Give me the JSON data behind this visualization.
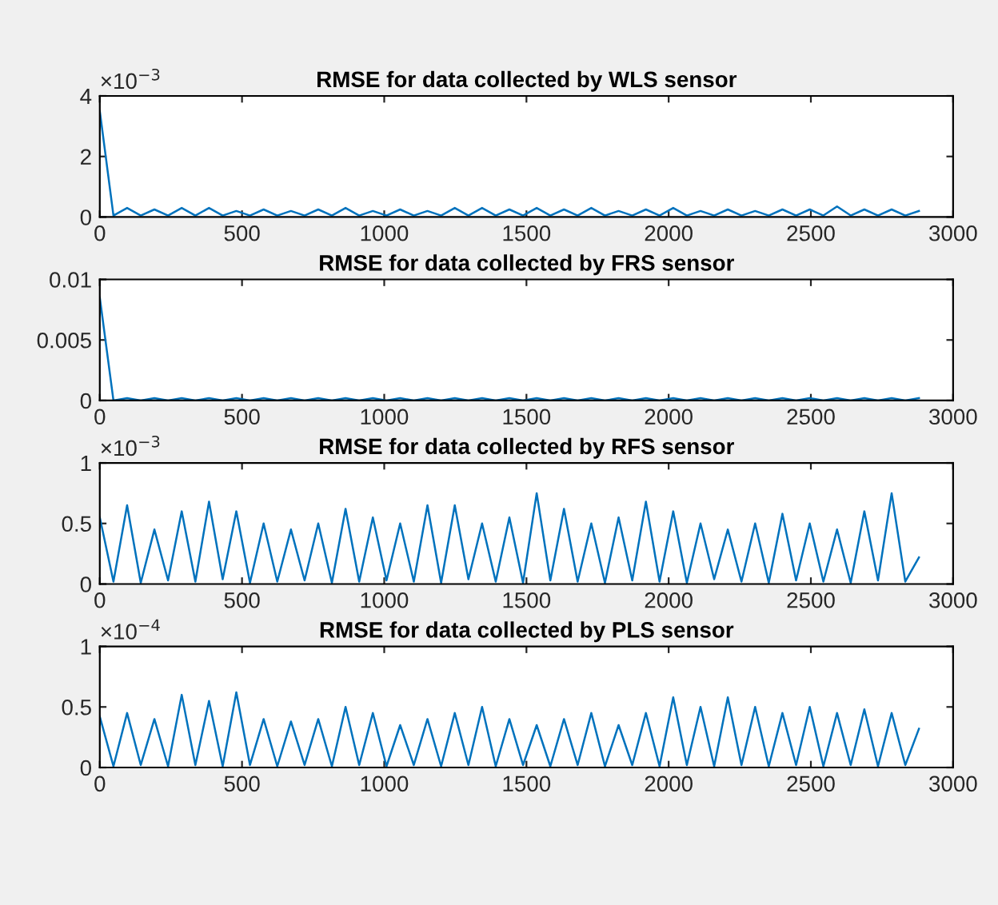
{
  "chart_data": [
    {
      "type": "line",
      "title": "RMSE for data collected by WLS sensor",
      "annotations": [
        "×10$^{−3}$"
      ],
      "xlim": [
        0,
        3000
      ],
      "xticks": [
        0,
        500,
        1000,
        1500,
        2000,
        2500,
        3000
      ],
      "ylim": [
        0,
        4
      ],
      "yticks": [
        0,
        2,
        4
      ],
      "grid": false,
      "line_style": "solid",
      "x": [
        0,
        48,
        96,
        144,
        192,
        240,
        288,
        336,
        384,
        432,
        480,
        528,
        576,
        624,
        672,
        720,
        768,
        816,
        864,
        912,
        960,
        1008,
        1056,
        1104,
        1152,
        1200,
        1248,
        1296,
        1344,
        1392,
        1440,
        1488,
        1536,
        1584,
        1632,
        1680,
        1728,
        1776,
        1824,
        1872,
        1920,
        1968,
        2016,
        2064,
        2112,
        2160,
        2208,
        2256,
        2304,
        2352,
        2400,
        2448,
        2496,
        2544,
        2592,
        2640,
        2688,
        2736,
        2784,
        2832,
        2880
      ],
      "series": [
        {
          "color": "#0072bd",
          "values": [
            3.5,
            0.05,
            0.3,
            0.05,
            0.25,
            0.05,
            0.3,
            0.05,
            0.3,
            0.05,
            0.2,
            0.05,
            0.25,
            0.05,
            0.2,
            0.05,
            0.25,
            0.05,
            0.3,
            0.05,
            0.2,
            0.05,
            0.25,
            0.05,
            0.2,
            0.05,
            0.3,
            0.05,
            0.3,
            0.05,
            0.25,
            0.05,
            0.3,
            0.05,
            0.25,
            0.05,
            0.3,
            0.05,
            0.2,
            0.05,
            0.25,
            0.05,
            0.3,
            0.05,
            0.2,
            0.05,
            0.25,
            0.05,
            0.2,
            0.05,
            0.25,
            0.05,
            0.25,
            0.05,
            0.35,
            0.05,
            0.25,
            0.05,
            0.25,
            0.05,
            0.2
          ]
        }
      ]
    },
    {
      "type": "line",
      "title": "RMSE for data collected by FRS sensor",
      "xlim": [
        0,
        3000
      ],
      "xticks": [
        0,
        500,
        1000,
        1500,
        2000,
        2500,
        3000
      ],
      "ylim": [
        0,
        0.01
      ],
      "yticks": [
        0,
        0.005,
        0.01
      ],
      "grid": false,
      "line_style": "solid",
      "x": [
        0,
        48,
        96,
        144,
        192,
        240,
        288,
        336,
        384,
        432,
        480,
        528,
        576,
        624,
        672,
        720,
        768,
        816,
        864,
        912,
        960,
        1008,
        1056,
        1104,
        1152,
        1200,
        1248,
        1296,
        1344,
        1392,
        1440,
        1488,
        1536,
        1584,
        1632,
        1680,
        1728,
        1776,
        1824,
        1872,
        1920,
        1968,
        2016,
        2064,
        2112,
        2160,
        2208,
        2256,
        2304,
        2352,
        2400,
        2448,
        2496,
        2544,
        2592,
        2640,
        2688,
        2736,
        2784,
        2832,
        2880
      ],
      "series": [
        {
          "color": "#0072bd",
          "values": [
            0.0085,
            0,
            0.0002,
            0,
            0.0002,
            0,
            0.0002,
            0,
            0.0002,
            0,
            0.0002,
            0,
            0.0002,
            0,
            0.0002,
            0,
            0.0002,
            0,
            0.0002,
            0,
            0.0002,
            0,
            0.0002,
            0,
            0.0002,
            0,
            0.0002,
            0,
            0.0002,
            0,
            0.0002,
            0,
            0.0002,
            0,
            0.0002,
            0,
            0.0002,
            0,
            0.0002,
            0,
            0.0002,
            0,
            0.0002,
            0,
            0.0002,
            0,
            0.0002,
            0,
            0.0002,
            0,
            0.0002,
            0,
            0.0002,
            0,
            0.0002,
            0,
            0.0002,
            0,
            0.0002,
            0,
            0.0002
          ]
        }
      ]
    },
    {
      "type": "line",
      "title": "RMSE for data collected by RFS sensor",
      "annotations": [
        "×10$^{−3}$"
      ],
      "xlim": [
        0,
        3000
      ],
      "xticks": [
        0,
        500,
        1000,
        1500,
        2000,
        2500,
        3000
      ],
      "ylim": [
        0,
        1
      ],
      "yticks": [
        0,
        0.5,
        1
      ],
      "grid": false,
      "line_style": "solid",
      "x": [
        0,
        48,
        96,
        144,
        192,
        240,
        288,
        336,
        384,
        432,
        480,
        528,
        576,
        624,
        672,
        720,
        768,
        816,
        864,
        912,
        960,
        1008,
        1056,
        1104,
        1152,
        1200,
        1248,
        1296,
        1344,
        1392,
        1440,
        1488,
        1536,
        1584,
        1632,
        1680,
        1728,
        1776,
        1824,
        1872,
        1920,
        1968,
        2016,
        2064,
        2112,
        2160,
        2208,
        2256,
        2304,
        2352,
        2400,
        2448,
        2496,
        2544,
        2592,
        2640,
        2688,
        2736,
        2784,
        2832,
        2880
      ],
      "series": [
        {
          "color": "#0072bd",
          "values": [
            0.55,
            0.02,
            0.65,
            0.01,
            0.45,
            0.03,
            0.6,
            0.02,
            0.68,
            0.04,
            0.6,
            0.01,
            0.5,
            0.02,
            0.45,
            0.03,
            0.5,
            0.01,
            0.62,
            0.02,
            0.55,
            0.03,
            0.5,
            0.02,
            0.65,
            0.01,
            0.65,
            0.04,
            0.5,
            0.02,
            0.55,
            0.01,
            0.75,
            0.03,
            0.62,
            0.02,
            0.5,
            0.01,
            0.55,
            0.03,
            0.68,
            0.02,
            0.6,
            0.01,
            0.5,
            0.04,
            0.45,
            0.02,
            0.5,
            0.01,
            0.58,
            0.03,
            0.5,
            0.02,
            0.45,
            0.01,
            0.6,
            0.03,
            0.75,
            0.02,
            0.22
          ]
        }
      ]
    },
    {
      "type": "line",
      "title": "RMSE for data collected by PLS sensor",
      "annotations": [
        "×10$^{−4}$"
      ],
      "xlim": [
        0,
        3000
      ],
      "xticks": [
        0,
        500,
        1000,
        1500,
        2000,
        2500,
        3000
      ],
      "ylim": [
        0,
        1
      ],
      "yticks": [
        0,
        0.5,
        1
      ],
      "grid": false,
      "line_style": "solid",
      "x": [
        0,
        48,
        96,
        144,
        192,
        240,
        288,
        336,
        384,
        432,
        480,
        528,
        576,
        624,
        672,
        720,
        768,
        816,
        864,
        912,
        960,
        1008,
        1056,
        1104,
        1152,
        1200,
        1248,
        1296,
        1344,
        1392,
        1440,
        1488,
        1536,
        1584,
        1632,
        1680,
        1728,
        1776,
        1824,
        1872,
        1920,
        1968,
        2016,
        2064,
        2112,
        2160,
        2208,
        2256,
        2304,
        2352,
        2400,
        2448,
        2496,
        2544,
        2592,
        2640,
        2688,
        2736,
        2784,
        2832,
        2880
      ],
      "series": [
        {
          "color": "#0072bd",
          "values": [
            0.42,
            0.01,
            0.45,
            0.02,
            0.4,
            0.01,
            0.6,
            0.02,
            0.55,
            0.01,
            0.62,
            0.02,
            0.4,
            0.01,
            0.38,
            0.02,
            0.4,
            0.01,
            0.5,
            0.02,
            0.45,
            0.01,
            0.35,
            0.02,
            0.4,
            0.01,
            0.45,
            0.02,
            0.5,
            0.01,
            0.4,
            0.02,
            0.35,
            0.01,
            0.4,
            0.02,
            0.45,
            0.01,
            0.35,
            0.02,
            0.45,
            0.01,
            0.58,
            0.02,
            0.5,
            0.01,
            0.58,
            0.02,
            0.5,
            0.01,
            0.45,
            0.02,
            0.5,
            0.01,
            0.45,
            0.02,
            0.48,
            0.01,
            0.45,
            0.02,
            0.32
          ]
        }
      ]
    }
  ]
}
